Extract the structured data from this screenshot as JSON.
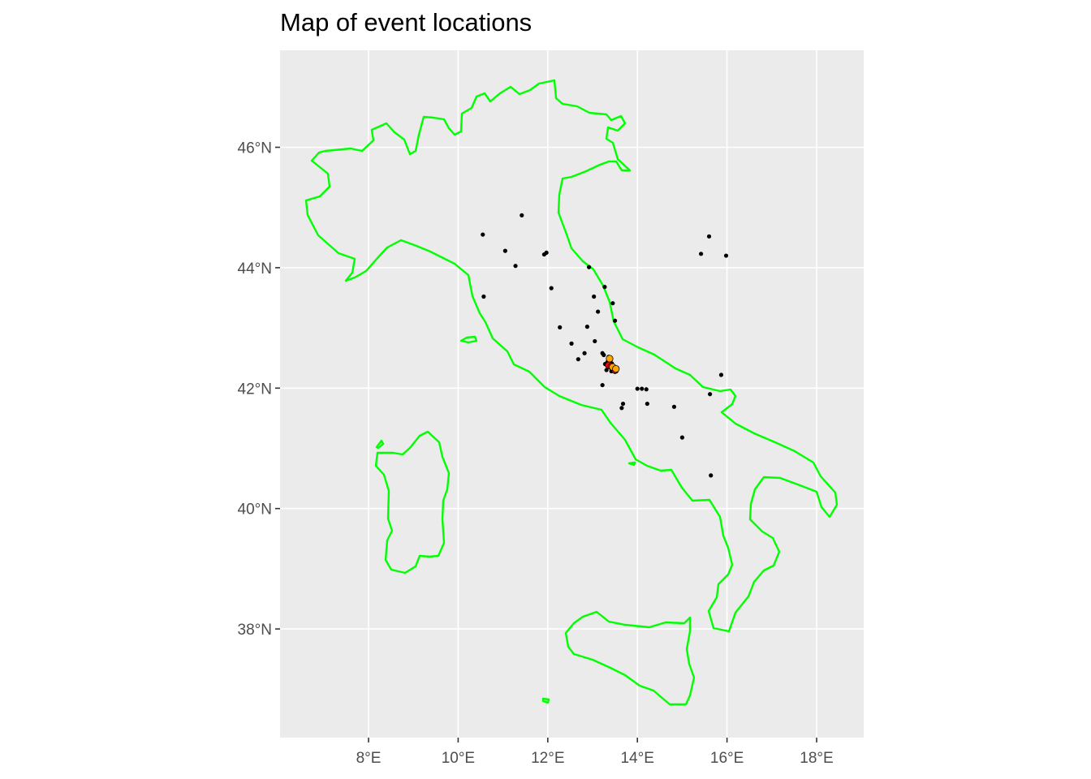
{
  "title": "Map of event locations",
  "colors": {
    "panel_background": "#ebebeb",
    "grid": "#ffffff",
    "coastline": "#00ff00",
    "event_marker": "#000000",
    "highlight_marker_a": "#ff0000",
    "highlight_marker_b": "#ffa500"
  },
  "chart_data": {
    "type": "scatter",
    "title": "Map of event locations",
    "projection": "geographic (lon/lat)",
    "xlim": [
      6.0,
      19.0
    ],
    "ylim": [
      36.3,
      47.4
    ],
    "grid": true,
    "x_ticks": [
      {
        "value": 8,
        "label": "8°E"
      },
      {
        "value": 10,
        "label": "10°E"
      },
      {
        "value": 12,
        "label": "12°E"
      },
      {
        "value": 14,
        "label": "14°E"
      },
      {
        "value": 16,
        "label": "16°E"
      },
      {
        "value": 18,
        "label": "18°E"
      }
    ],
    "y_ticks": [
      {
        "value": 38,
        "label": "38°N"
      },
      {
        "value": 40,
        "label": "40°N"
      },
      {
        "value": 42,
        "label": "42°N"
      },
      {
        "value": 44,
        "label": "44°N"
      },
      {
        "value": 46,
        "label": "46°N"
      }
    ],
    "events": [
      [
        10.55,
        44.55
      ],
      [
        11.42,
        44.87
      ],
      [
        11.05,
        44.28
      ],
      [
        11.28,
        44.03
      ],
      [
        11.92,
        44.22
      ],
      [
        11.97,
        44.25
      ],
      [
        10.57,
        43.52
      ],
      [
        12.08,
        43.66
      ],
      [
        12.92,
        44.01
      ],
      [
        13.03,
        43.52
      ],
      [
        13.12,
        43.27
      ],
      [
        13.27,
        43.68
      ],
      [
        13.45,
        43.41
      ],
      [
        13.5,
        43.12
      ],
      [
        12.27,
        43.01
      ],
      [
        12.88,
        43.02
      ],
      [
        12.53,
        42.74
      ],
      [
        12.68,
        42.48
      ],
      [
        12.82,
        42.58
      ],
      [
        13.05,
        42.78
      ],
      [
        13.22,
        42.58
      ],
      [
        13.25,
        42.55
      ],
      [
        13.28,
        42.4
      ],
      [
        13.31,
        42.3
      ],
      [
        13.36,
        42.52
      ],
      [
        13.39,
        42.47
      ],
      [
        13.43,
        42.41
      ],
      [
        13.46,
        42.35
      ],
      [
        13.48,
        42.3
      ],
      [
        13.5,
        42.27
      ],
      [
        13.53,
        42.28
      ],
      [
        13.55,
        42.32
      ],
      [
        13.42,
        42.28
      ],
      [
        13.33,
        42.43
      ],
      [
        13.22,
        42.05
      ],
      [
        14.0,
        41.99
      ],
      [
        14.1,
        41.99
      ],
      [
        14.2,
        41.98
      ],
      [
        14.22,
        41.74
      ],
      [
        13.68,
        41.74
      ],
      [
        13.65,
        41.67
      ],
      [
        14.82,
        41.69
      ],
      [
        15.0,
        41.18
      ],
      [
        15.62,
        41.9
      ],
      [
        15.87,
        42.22
      ],
      [
        15.42,
        44.23
      ],
      [
        15.6,
        44.52
      ],
      [
        15.98,
        44.2
      ],
      [
        15.64,
        40.55
      ]
    ],
    "highlight_events": [
      {
        "color": "red",
        "points": [
          [
            13.36,
            42.38
          ],
          [
            13.42,
            42.36
          ],
          [
            13.47,
            42.33
          ],
          [
            13.5,
            42.3
          ]
        ]
      },
      {
        "color": "orange",
        "points": [
          [
            13.38,
            42.49
          ],
          [
            13.45,
            42.35
          ],
          [
            13.52,
            42.32
          ]
        ]
      }
    ]
  }
}
